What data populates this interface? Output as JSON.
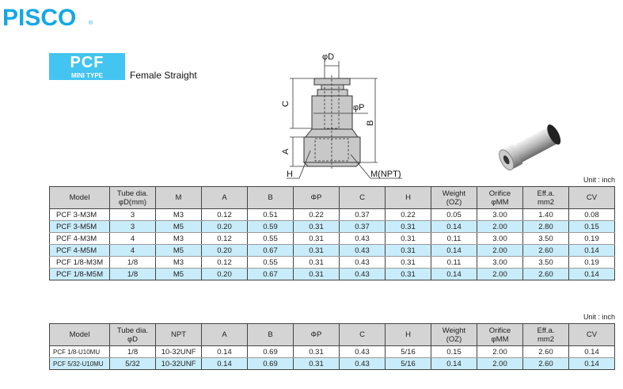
{
  "brand": {
    "logo": "PISCO",
    "registered": "®"
  },
  "product": {
    "code": "PCF",
    "type": "MINI TYPE",
    "title": "Female Straight"
  },
  "diagram": {
    "labels": {
      "d": "φD",
      "p": "φP",
      "c": "C",
      "b": "B",
      "a": "A",
      "h": "H",
      "m": "M(NPT)"
    }
  },
  "colors": {
    "brand": "#14a7e6",
    "badge": "#44c4f0",
    "row_alt": "#c9ecfa",
    "header": "#d4d4d4"
  },
  "table1": {
    "unit": "Unit : inch",
    "headers": [
      "Model",
      "Tube dia.\nφD(mm)",
      "M",
      "A",
      "B",
      "ΦP",
      "C",
      "H",
      "Weight\n(OZ)",
      "Orifice\nφMM",
      "Eff.a.\nmm2",
      "CV"
    ],
    "rows": [
      [
        "PCF 3-M3M",
        "3",
        "M3",
        "0.12",
        "0.51",
        "0.22",
        "0.37",
        "0.22",
        "0.05",
        "3.00",
        "1.40",
        "0.08"
      ],
      [
        "PCF 3-M5M",
        "3",
        "M5",
        "0.20",
        "0.59",
        "0.31",
        "0.37",
        "0.31",
        "0.14",
        "2.00",
        "2.80",
        "0.15"
      ],
      [
        "PCF 4-M3M",
        "4",
        "M3",
        "0.12",
        "0.55",
        "0.31",
        "0.43",
        "0.31",
        "0.11",
        "3.00",
        "3.50",
        "0.19"
      ],
      [
        "PCF 4-M5M",
        "4",
        "M5",
        "0.20",
        "0.67",
        "0.31",
        "0.43",
        "0.31",
        "0.14",
        "2.00",
        "2.60",
        "0.14"
      ],
      [
        "PCF 1/8-M3M",
        "1/8",
        "M3",
        "0.12",
        "0.55",
        "0.31",
        "0.43",
        "0.31",
        "0.11",
        "3.00",
        "3.50",
        "0.19"
      ],
      [
        "PCF 1/8-M5M",
        "1/8",
        "M5",
        "0.20",
        "0.67",
        "0.31",
        "0.43",
        "0.31",
        "0.14",
        "2.00",
        "2.60",
        "0.14"
      ]
    ]
  },
  "table2": {
    "unit": "Unit : inch",
    "headers": [
      "Model",
      "Tube dia.\nφD",
      "NPT",
      "A",
      "B",
      "ΦP",
      "C",
      "H",
      "Weight\n(OZ)",
      "Orifice\nφMM",
      "Eff.a.\nmm2",
      "CV"
    ],
    "rows": [
      [
        "PCF 1/8-U10MU",
        "1/8",
        "10-32UNF",
        "0.14",
        "0.69",
        "0.31",
        "0.43",
        "5/16",
        "0.15",
        "2.00",
        "2.60",
        "0.14"
      ],
      [
        "PCF 5/32-U10MU",
        "5/32",
        "10-32UNF",
        "0.14",
        "0.69",
        "0.31",
        "0.43",
        "5/16",
        "0.14",
        "2.00",
        "2.60",
        "0.14"
      ]
    ]
  }
}
